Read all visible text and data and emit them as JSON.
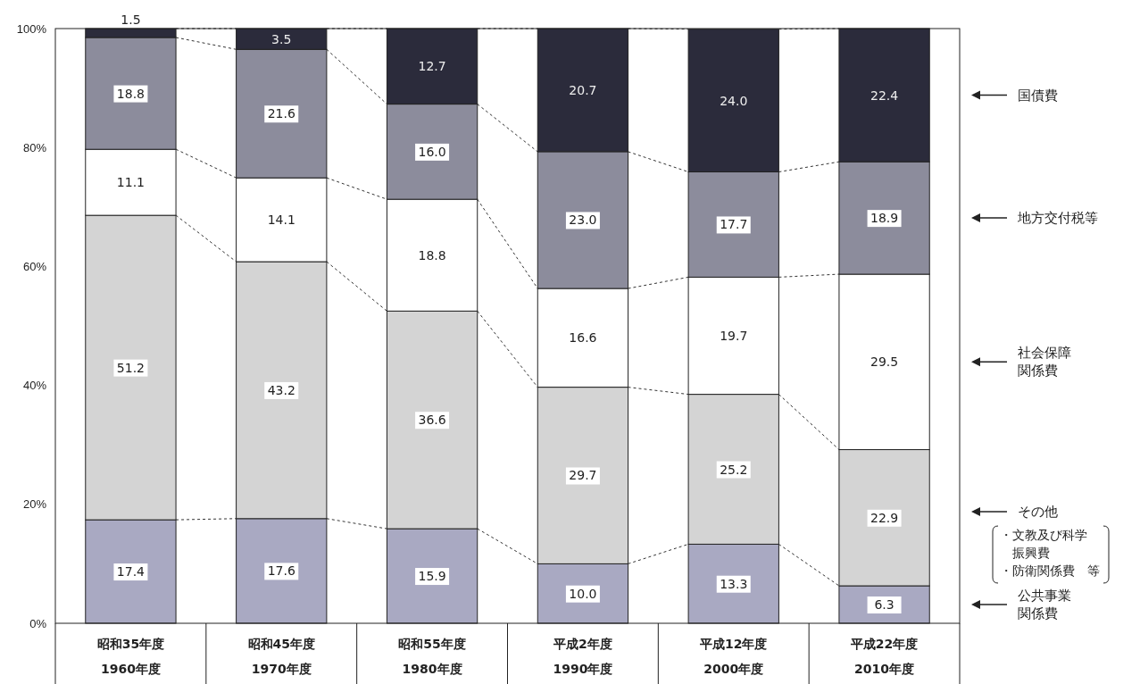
{
  "chart_data": {
    "type": "bar",
    "stacked": true,
    "legend": "right",
    "grid": false,
    "categories": [
      "昭和35年度 1960年度",
      "昭和45年度 1970年度",
      "昭和55年度 1980年度",
      "平成2年度 1990年度",
      "平成12年度 2000年度",
      "平成22年度 2010年度"
    ],
    "ylim": [
      0,
      100
    ],
    "yticks": [
      {
        "value": 0,
        "label": "0%"
      },
      {
        "value": 20,
        "label": "20%"
      },
      {
        "value": 40,
        "label": "40%"
      },
      {
        "value": 60,
        "label": "60%"
      },
      {
        "value": 80,
        "label": "80%"
      },
      {
        "value": 100,
        "label": "100%"
      }
    ],
    "series": [
      {
        "name": "公共事業関係費",
        "color": "#a9a9c2",
        "values": [
          17.4,
          17.6,
          15.9,
          10.0,
          13.3,
          6.3
        ],
        "value_labels": [
          "17.4",
          "17.6",
          "15.9",
          "10.0",
          "13.3",
          "6.3"
        ]
      },
      {
        "name": "その他",
        "color": "#d4d4d4",
        "values": [
          51.2,
          43.2,
          36.6,
          29.7,
          25.2,
          22.9
        ],
        "value_labels": [
          "51.2",
          "43.2",
          "36.6",
          "29.7",
          "25.2",
          "22.9"
        ]
      },
      {
        "name": "社会保障関係費",
        "color": "#ffffff",
        "values": [
          11.1,
          14.1,
          18.8,
          16.6,
          19.7,
          29.5
        ],
        "value_labels": [
          "11.1",
          "14.1",
          "18.8",
          "16.6",
          "19.7",
          "29.5"
        ]
      },
      {
        "name": "地方交付税等",
        "color": "#8c8c9c",
        "values": [
          18.8,
          21.6,
          16.0,
          23.0,
          17.7,
          18.9
        ],
        "value_labels": [
          "18.8",
          "21.6",
          "16.0",
          "23.0",
          "17.7",
          "18.9"
        ]
      },
      {
        "name": "国債費",
        "color": "#2b2b3b",
        "values": [
          1.5,
          3.5,
          12.7,
          20.7,
          24.0,
          22.4
        ],
        "value_labels": [
          "1.5",
          "3.5",
          "12.7",
          "20.7",
          "24.0",
          "22.4"
        ]
      }
    ],
    "annotations": [
      "・文教及び科学振興費",
      "・防衛関係費　等"
    ]
  }
}
